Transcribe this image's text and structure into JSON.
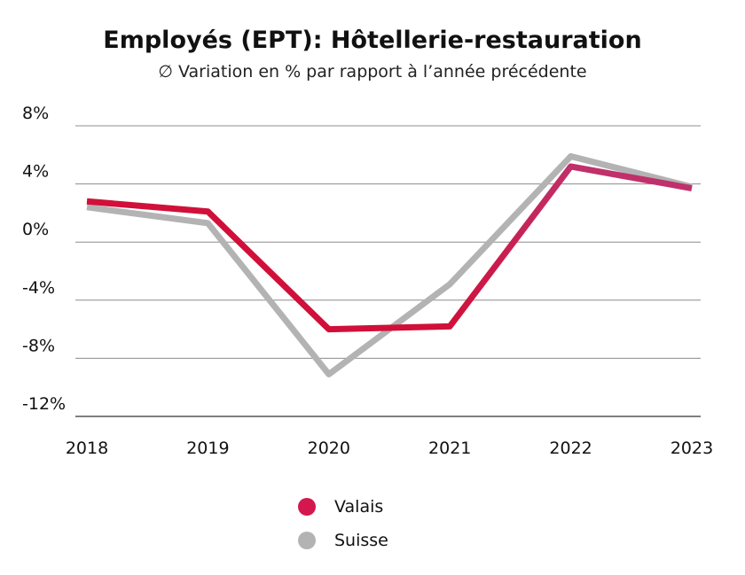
{
  "chart_data": {
    "type": "line",
    "title": "Employés (EPT): Hôtellerie-restauration",
    "subtitle": "∅ Variation en % par rapport à l’année précédente",
    "categories": [
      "2018",
      "2019",
      "2020",
      "2021",
      "2022",
      "2023"
    ],
    "series": [
      {
        "name": "Valais",
        "values": [
          2.8,
          2.1,
          -6.0,
          -5.8,
          5.2,
          3.7
        ],
        "color": "#d0103a",
        "gradient_end": "#c0306a"
      },
      {
        "name": "Suisse",
        "values": [
          2.4,
          1.3,
          -9.1,
          -2.9,
          5.9,
          3.8
        ],
        "color": "#b3b3b3"
      }
    ],
    "ylim": [
      -12,
      8
    ],
    "yticks": [
      8,
      4,
      0,
      -4,
      -8,
      -12
    ],
    "ytick_labels": [
      "8%",
      "4%",
      "0%",
      "-4%",
      "-8%",
      "-12%"
    ],
    "grid": true,
    "legend_position": "bottom-center"
  }
}
